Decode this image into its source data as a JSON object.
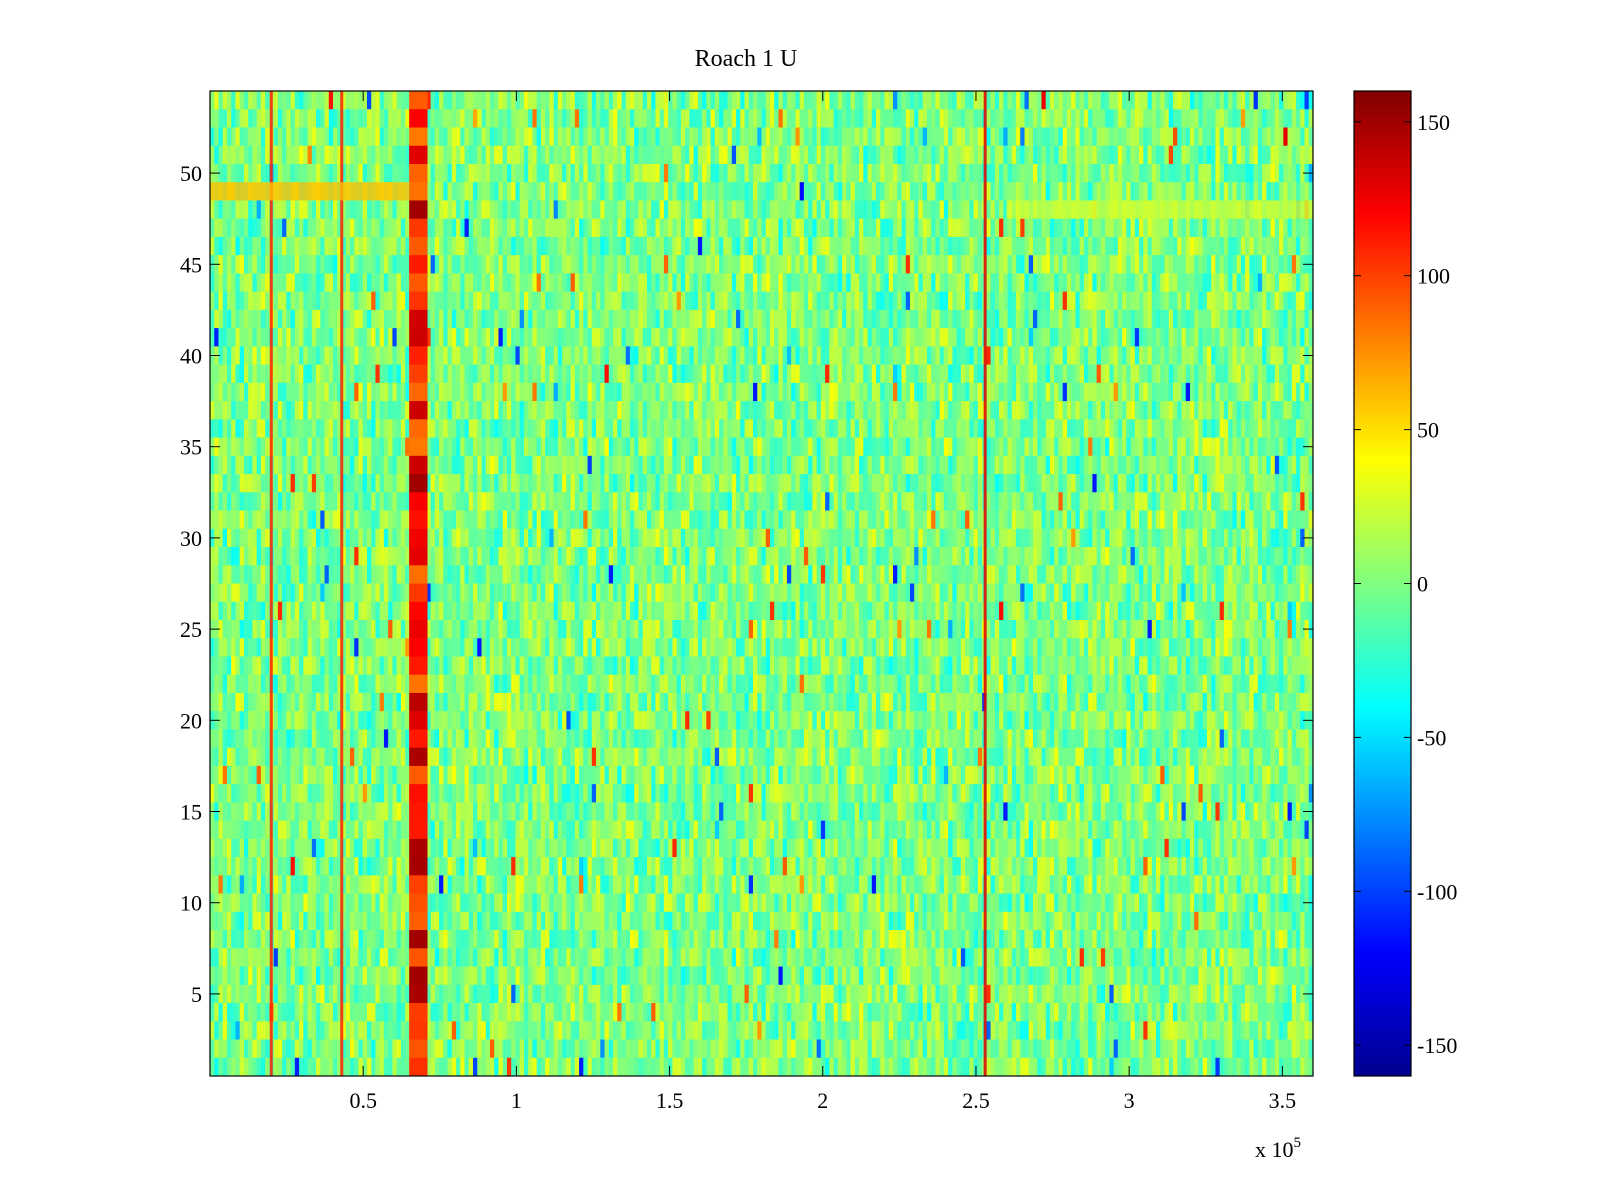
{
  "chart_data": {
    "type": "heatmap",
    "title": "Roach 1 U",
    "xlabel": "",
    "ylabel": "",
    "x_exponent_label": "x 10",
    "x_exponent_power": "5",
    "xlim": [
      0,
      360000
    ],
    "ylim": [
      0.5,
      54.5
    ],
    "x_ticks": [
      50000,
      100000,
      150000,
      200000,
      250000,
      300000,
      350000
    ],
    "x_tick_labels": [
      "0.5",
      "1",
      "1.5",
      "2",
      "2.5",
      "3",
      "3.5"
    ],
    "y_ticks": [
      5,
      10,
      15,
      20,
      25,
      30,
      35,
      40,
      45,
      50
    ],
    "y_tick_labels": [
      "5",
      "10",
      "15",
      "20",
      "25",
      "30",
      "35",
      "40",
      "45",
      "50"
    ],
    "rows": 54,
    "colormap": "jet",
    "color_range": [
      -160,
      160
    ],
    "colorbar_ticks": [
      150,
      100,
      50,
      0,
      -50,
      -100,
      -150
    ],
    "colorbar_tick_labels": [
      "150",
      "100",
      "50",
      "0",
      "-50",
      "-100",
      "-150"
    ],
    "colorbar_placement": "right",
    "grid": false,
    "features": [
      {
        "kind": "vertical_band",
        "x_start": 65000,
        "x_end": 71000,
        "value": 150
      },
      {
        "kind": "vertical_line",
        "x": 253000,
        "value": 130
      },
      {
        "kind": "vertical_line",
        "x": 20000,
        "value": 110
      },
      {
        "kind": "vertical_line",
        "x": 43000,
        "value": 110
      },
      {
        "kind": "horizontal_band",
        "row": 49,
        "x_start": 0,
        "x_end": 65000,
        "value": 60
      },
      {
        "kind": "horizontal_band",
        "row": 48,
        "x_start": 260000,
        "x_end": 360000,
        "value": 25
      }
    ]
  }
}
